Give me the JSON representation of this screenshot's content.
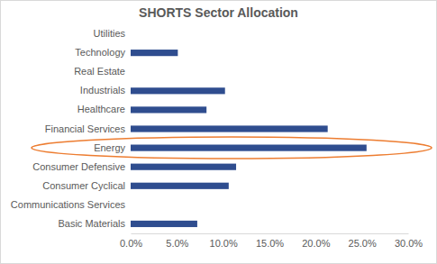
{
  "chart_data": {
    "type": "bar",
    "title": "SHORTS Sector Allocation",
    "orientation": "horizontal",
    "categories": [
      "Utilities",
      "Technology",
      "Real Estate",
      "Industrials",
      "Healthcare",
      "Financial Services",
      "Energy",
      "Consumer Defensive",
      "Consumer Cyclical",
      "Communications Services",
      "Basic Materials"
    ],
    "values": [
      0,
      5.1,
      0,
      10.2,
      8.2,
      21.3,
      25.5,
      11.4,
      10.6,
      0,
      7.2
    ],
    "color": "#2f4d8f",
    "xlim": [
      0,
      30
    ],
    "xticks": [
      {
        "value": 0,
        "label": "0.0%"
      },
      {
        "value": 5,
        "label": "5.0%"
      },
      {
        "value": 10,
        "label": "10.0%"
      },
      {
        "value": 15,
        "label": "15.0%"
      },
      {
        "value": 20,
        "label": "20.0%"
      },
      {
        "value": 25,
        "label": "25.0%"
      },
      {
        "value": 30,
        "label": "30.0%"
      }
    ],
    "grid": false
  }
}
